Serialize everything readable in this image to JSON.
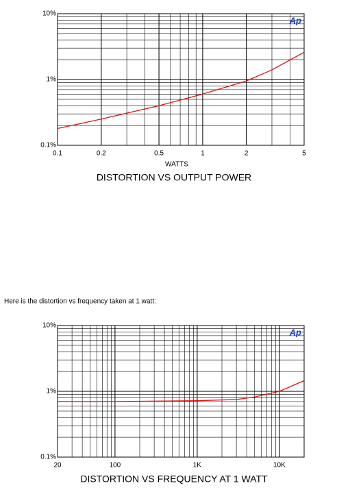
{
  "intro": "Here is the distortion vs frequency taken at 1 watt:",
  "chart_data": [
    {
      "type": "line",
      "title": "DISTORTION VS OUTPUT POWER",
      "x_label": "WATTS",
      "logo": "Ap",
      "log_x": true,
      "log_y": true,
      "grid": true,
      "x": [
        0.1,
        0.2,
        0.5,
        1,
        2,
        3,
        5
      ],
      "series": [
        {
          "color": "#e01010",
          "values": [
            0.18,
            0.25,
            0.4,
            0.6,
            0.95,
            1.4,
            2.6
          ]
        }
      ],
      "xlim": [
        0.1,
        5
      ],
      "xticks": [
        0.1,
        0.2,
        0.5,
        1,
        2,
        5
      ],
      "ylim": [
        0.1,
        10
      ],
      "yticks": [
        {
          "value": 0.1,
          "label": "0.1%"
        },
        {
          "value": 1,
          "label": "1%"
        },
        {
          "value": 10,
          "label": "10%"
        }
      ]
    },
    {
      "type": "line",
      "title": "DISTORTION VS FREQUENCY AT 1 WATT",
      "logo": "Ap",
      "log_x": true,
      "log_y": true,
      "grid": true,
      "x": [
        20,
        100,
        1000,
        3000,
        5000,
        10000,
        20000
      ],
      "series": [
        {
          "color": "#e01010",
          "values": [
            0.7,
            0.7,
            0.72,
            0.75,
            0.82,
            1.0,
            1.45
          ]
        }
      ],
      "xlim": [
        20,
        20000
      ],
      "xticks": [
        20,
        100,
        {
          "value": 1000,
          "label": "1K"
        },
        {
          "value": 10000,
          "label": "10K"
        }
      ],
      "ylim": [
        0.1,
        10
      ],
      "yticks": [
        {
          "value": 0.1,
          "label": "0.1%"
        },
        {
          "value": 1,
          "label": "1%"
        },
        {
          "value": 10,
          "label": "10%"
        }
      ]
    }
  ]
}
